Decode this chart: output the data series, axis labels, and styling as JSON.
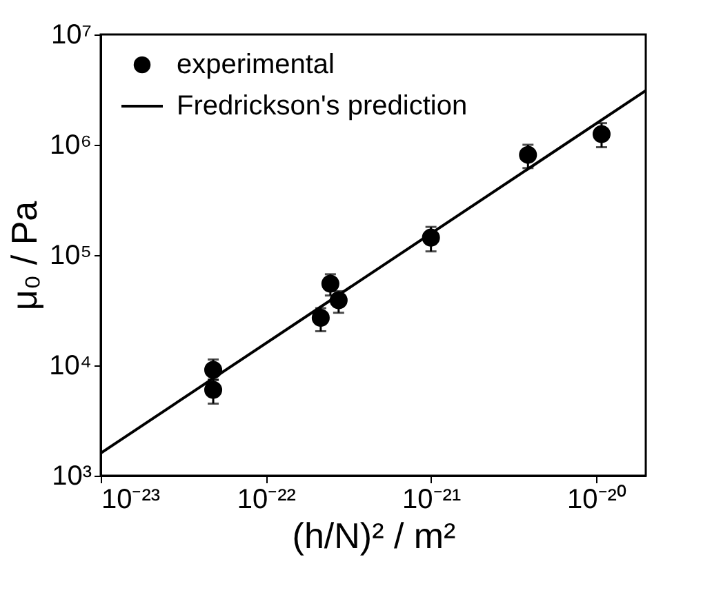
{
  "chart_data": {
    "type": "scatter",
    "xlabel": "(h/N)² / m²",
    "ylabel": "μ₀ / Pa",
    "log": "xy",
    "grid": false,
    "legend": "top left",
    "xlim": [
      1e-23,
      2e-20
    ],
    "ylim": [
      1000,
      10000000
    ],
    "xticks": [
      {
        "value": 1e-23,
        "label": "10⁻²³"
      },
      {
        "value": 1e-22,
        "label": "10⁻²²"
      },
      {
        "value": 1e-21,
        "label": "10⁻²¹"
      },
      {
        "value": 1e-20,
        "label": "10⁻²⁰"
      }
    ],
    "yticks": [
      {
        "value": 1000,
        "label": "10³"
      },
      {
        "value": 10000,
        "label": "10⁴"
      },
      {
        "value": 100000,
        "label": "10⁵"
      },
      {
        "value": 1000000,
        "label": "10⁶"
      },
      {
        "value": 10000000,
        "label": "10⁷"
      }
    ],
    "series": [
      {
        "name": "experimental",
        "marker": "circle",
        "color": "#000000",
        "x": [
          4.8e-23,
          4.8e-23,
          2.15e-22,
          2.46e-22,
          2.76e-22,
          1e-21,
          3.87e-21,
          1.08e-20
        ],
        "values": [
          9100,
          6000,
          27000,
          55000,
          39000,
          144000,
          810000,
          1250000
        ],
        "errors": [
          [
            7400,
            11300
          ],
          [
            4500,
            7400
          ],
          [
            20400,
            33000
          ],
          [
            43000,
            67000
          ],
          [
            30000,
            47000
          ],
          [
            108000,
            180000
          ],
          [
            615000,
            1000000
          ],
          [
            950000,
            1570000
          ]
        ]
      },
      {
        "name": "Fredrickson's prediction",
        "type": "line",
        "color": "#000000",
        "line_style": "solid",
        "x": [
          1e-23,
          2e-20
        ],
        "values": [
          1600,
          3100000
        ]
      }
    ]
  }
}
